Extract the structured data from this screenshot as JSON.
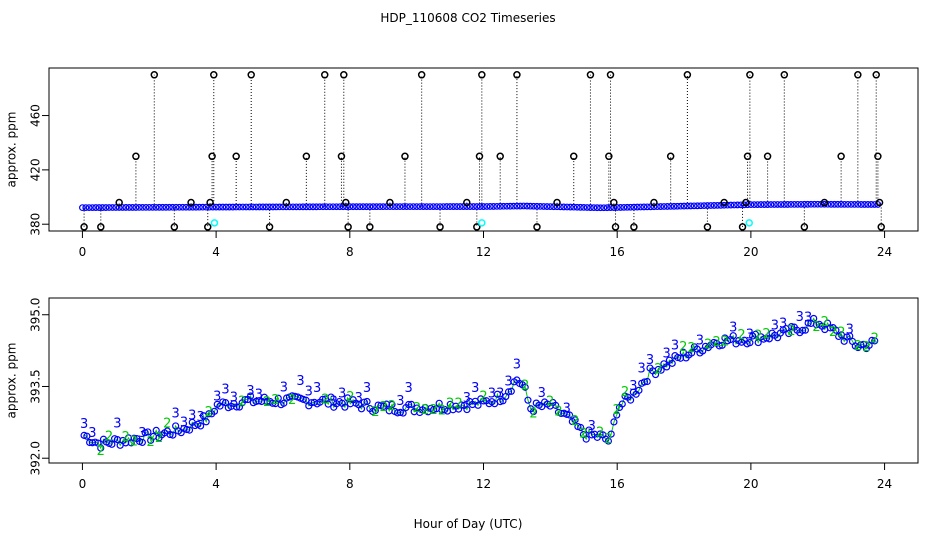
{
  "title": "HDP_110608  CO2 Timeseries",
  "xlabel": "Hour of Day (UTC)",
  "colors": {
    "primary": "#0000ff",
    "secondary": "#00cc00",
    "flag": "#00ffff",
    "outlier": "#000000"
  },
  "chart_data": [
    {
      "type": "scatter",
      "panel": "top",
      "ylabel": "approx. ppm",
      "xlim": [
        -1,
        25
      ],
      "ylim": [
        375,
        495
      ],
      "xticks": [
        0,
        4,
        8,
        12,
        16,
        20,
        24
      ],
      "yticks": [
        380,
        420,
        460
      ],
      "ytick_labels": [
        "380",
        "420",
        "460"
      ],
      "baseline": [
        [
          0,
          392.2
        ],
        [
          4,
          392.6
        ],
        [
          8,
          392.9
        ],
        [
          12,
          393.0
        ],
        [
          13.2,
          393.4
        ],
        [
          15.5,
          392.1
        ],
        [
          16,
          392.3
        ],
        [
          20,
          394.4
        ],
        [
          22,
          394.7
        ],
        [
          24,
          394.5
        ]
      ],
      "flag_points": [
        [
          3.95,
          381
        ],
        [
          11.95,
          381
        ],
        [
          19.95,
          381
        ]
      ],
      "outliers": [
        [
          0.05,
          378
        ],
        [
          0.55,
          378
        ],
        [
          1.1,
          396
        ],
        [
          1.6,
          430
        ],
        [
          2.15,
          490
        ],
        [
          2.75,
          378
        ],
        [
          3.25,
          396
        ],
        [
          3.75,
          378
        ],
        [
          3.82,
          396
        ],
        [
          3.88,
          430
        ],
        [
          3.93,
          490
        ],
        [
          4.6,
          430
        ],
        [
          5.05,
          490
        ],
        [
          5.6,
          378
        ],
        [
          6.1,
          396
        ],
        [
          6.7,
          430
        ],
        [
          7.25,
          490
        ],
        [
          7.75,
          430
        ],
        [
          7.82,
          490
        ],
        [
          7.88,
          396
        ],
        [
          7.95,
          378
        ],
        [
          8.6,
          378
        ],
        [
          9.2,
          396
        ],
        [
          9.65,
          430
        ],
        [
          10.15,
          490
        ],
        [
          10.7,
          378
        ],
        [
          11.5,
          396
        ],
        [
          11.8,
          378
        ],
        [
          11.88,
          430
        ],
        [
          11.95,
          490
        ],
        [
          12.5,
          430
        ],
        [
          13.0,
          490
        ],
        [
          13.6,
          378
        ],
        [
          14.2,
          396
        ],
        [
          14.7,
          430
        ],
        [
          15.2,
          490
        ],
        [
          15.75,
          430
        ],
        [
          15.8,
          490
        ],
        [
          15.9,
          396
        ],
        [
          15.95,
          378
        ],
        [
          16.5,
          378
        ],
        [
          17.1,
          396
        ],
        [
          17.6,
          430
        ],
        [
          18.1,
          490
        ],
        [
          18.7,
          378
        ],
        [
          19.2,
          396
        ],
        [
          19.75,
          378
        ],
        [
          19.85,
          396
        ],
        [
          19.9,
          430
        ],
        [
          19.97,
          490
        ],
        [
          20.5,
          430
        ],
        [
          21.0,
          490
        ],
        [
          21.6,
          378
        ],
        [
          22.2,
          396
        ],
        [
          22.7,
          430
        ],
        [
          23.2,
          490
        ],
        [
          23.75,
          490
        ],
        [
          23.8,
          430
        ],
        [
          23.85,
          396
        ],
        [
          23.9,
          378
        ]
      ]
    },
    {
      "type": "scatter",
      "panel": "bottom",
      "ylabel": "approx. ppm",
      "xlim": [
        -1,
        25
      ],
      "ylim": [
        391.9,
        395.35
      ],
      "xticks": [
        0,
        4,
        8,
        12,
        16,
        20,
        24
      ],
      "yticks": [
        392.0,
        393.5,
        395.0
      ],
      "ytick_labels": [
        "392.0",
        "393.5",
        "395.0"
      ],
      "series_trend": [
        [
          0,
          392.5
        ],
        [
          0.5,
          392.3
        ],
        [
          1,
          392.35
        ],
        [
          2,
          392.45
        ],
        [
          3,
          392.6
        ],
        [
          3.8,
          392.85
        ],
        [
          4,
          393.1
        ],
        [
          5,
          393.2
        ],
        [
          6,
          393.2
        ],
        [
          7,
          393.2
        ],
        [
          8,
          393.15
        ],
        [
          9,
          393.05
        ],
        [
          10,
          393.05
        ],
        [
          11,
          393.1
        ],
        [
          12,
          393.15
        ],
        [
          12.6,
          393.3
        ],
        [
          13.0,
          393.65
        ],
        [
          13.2,
          393.5
        ],
        [
          13.4,
          393.05
        ],
        [
          14,
          393.1
        ],
        [
          14.6,
          392.8
        ],
        [
          15.0,
          392.5
        ],
        [
          15.5,
          392.45
        ],
        [
          15.8,
          392.35
        ],
        [
          16,
          393.05
        ],
        [
          16.5,
          393.35
        ],
        [
          17,
          393.8
        ],
        [
          18,
          394.15
        ],
        [
          19,
          394.45
        ],
        [
          20,
          394.5
        ],
        [
          21,
          394.6
        ],
        [
          22,
          394.85
        ],
        [
          22.5,
          394.65
        ],
        [
          23.2,
          394.35
        ],
        [
          23.7,
          394.4
        ]
      ],
      "label_glyphs": [
        "3",
        "2"
      ]
    }
  ]
}
